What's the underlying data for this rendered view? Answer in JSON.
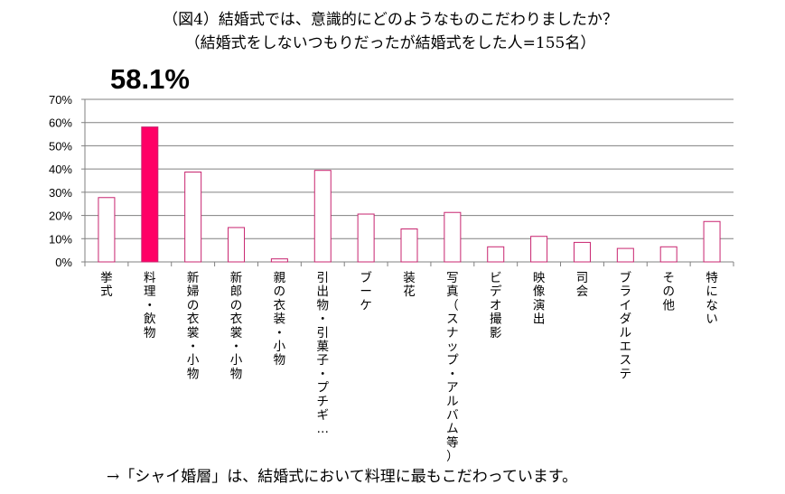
{
  "title_line1": "（図4）結婚式では、意識的にどのようなものこだわりましたか？",
  "title_line2": "（結婚式をしないつもりだったが結婚式をした人=155名）",
  "highlight_label": "58.1%",
  "footnote": "→「シャイ婚層」は、結婚式において料理に最もこだわっています。",
  "colors": {
    "bar_border": "#c8246f",
    "bar_fill": "#ffffff",
    "highlight_fill": "#ff0066",
    "grid": "#808080",
    "axis": "#808080"
  },
  "chart_data": {
    "type": "bar",
    "categories": [
      "挙式",
      "料理・飲物",
      "新婦の衣裳・小物",
      "新郎の衣裳・小物",
      "親の衣装・小物",
      "引出物・引菓子・プチギ…",
      "ブーケ",
      "装花",
      "写真（スナップ・アルバム等）",
      "ビデオ撮影",
      "映像演出",
      "司会",
      "ブライダルエステ",
      "その他",
      "特にない"
    ],
    "values": [
      27.7,
      58.1,
      38.7,
      14.8,
      1.3,
      39.4,
      20.6,
      14.2,
      21.3,
      6.5,
      11.0,
      8.4,
      5.8,
      6.5,
      17.4
    ],
    "highlight_index": 1,
    "ylim": [
      0,
      70
    ],
    "yticks": [
      0,
      10,
      20,
      30,
      40,
      50,
      60,
      70
    ],
    "ytick_labels": [
      "0%",
      "10%",
      "20%",
      "30%",
      "40%",
      "50%",
      "60%",
      "70%"
    ],
    "grid": true,
    "legend": "none"
  }
}
